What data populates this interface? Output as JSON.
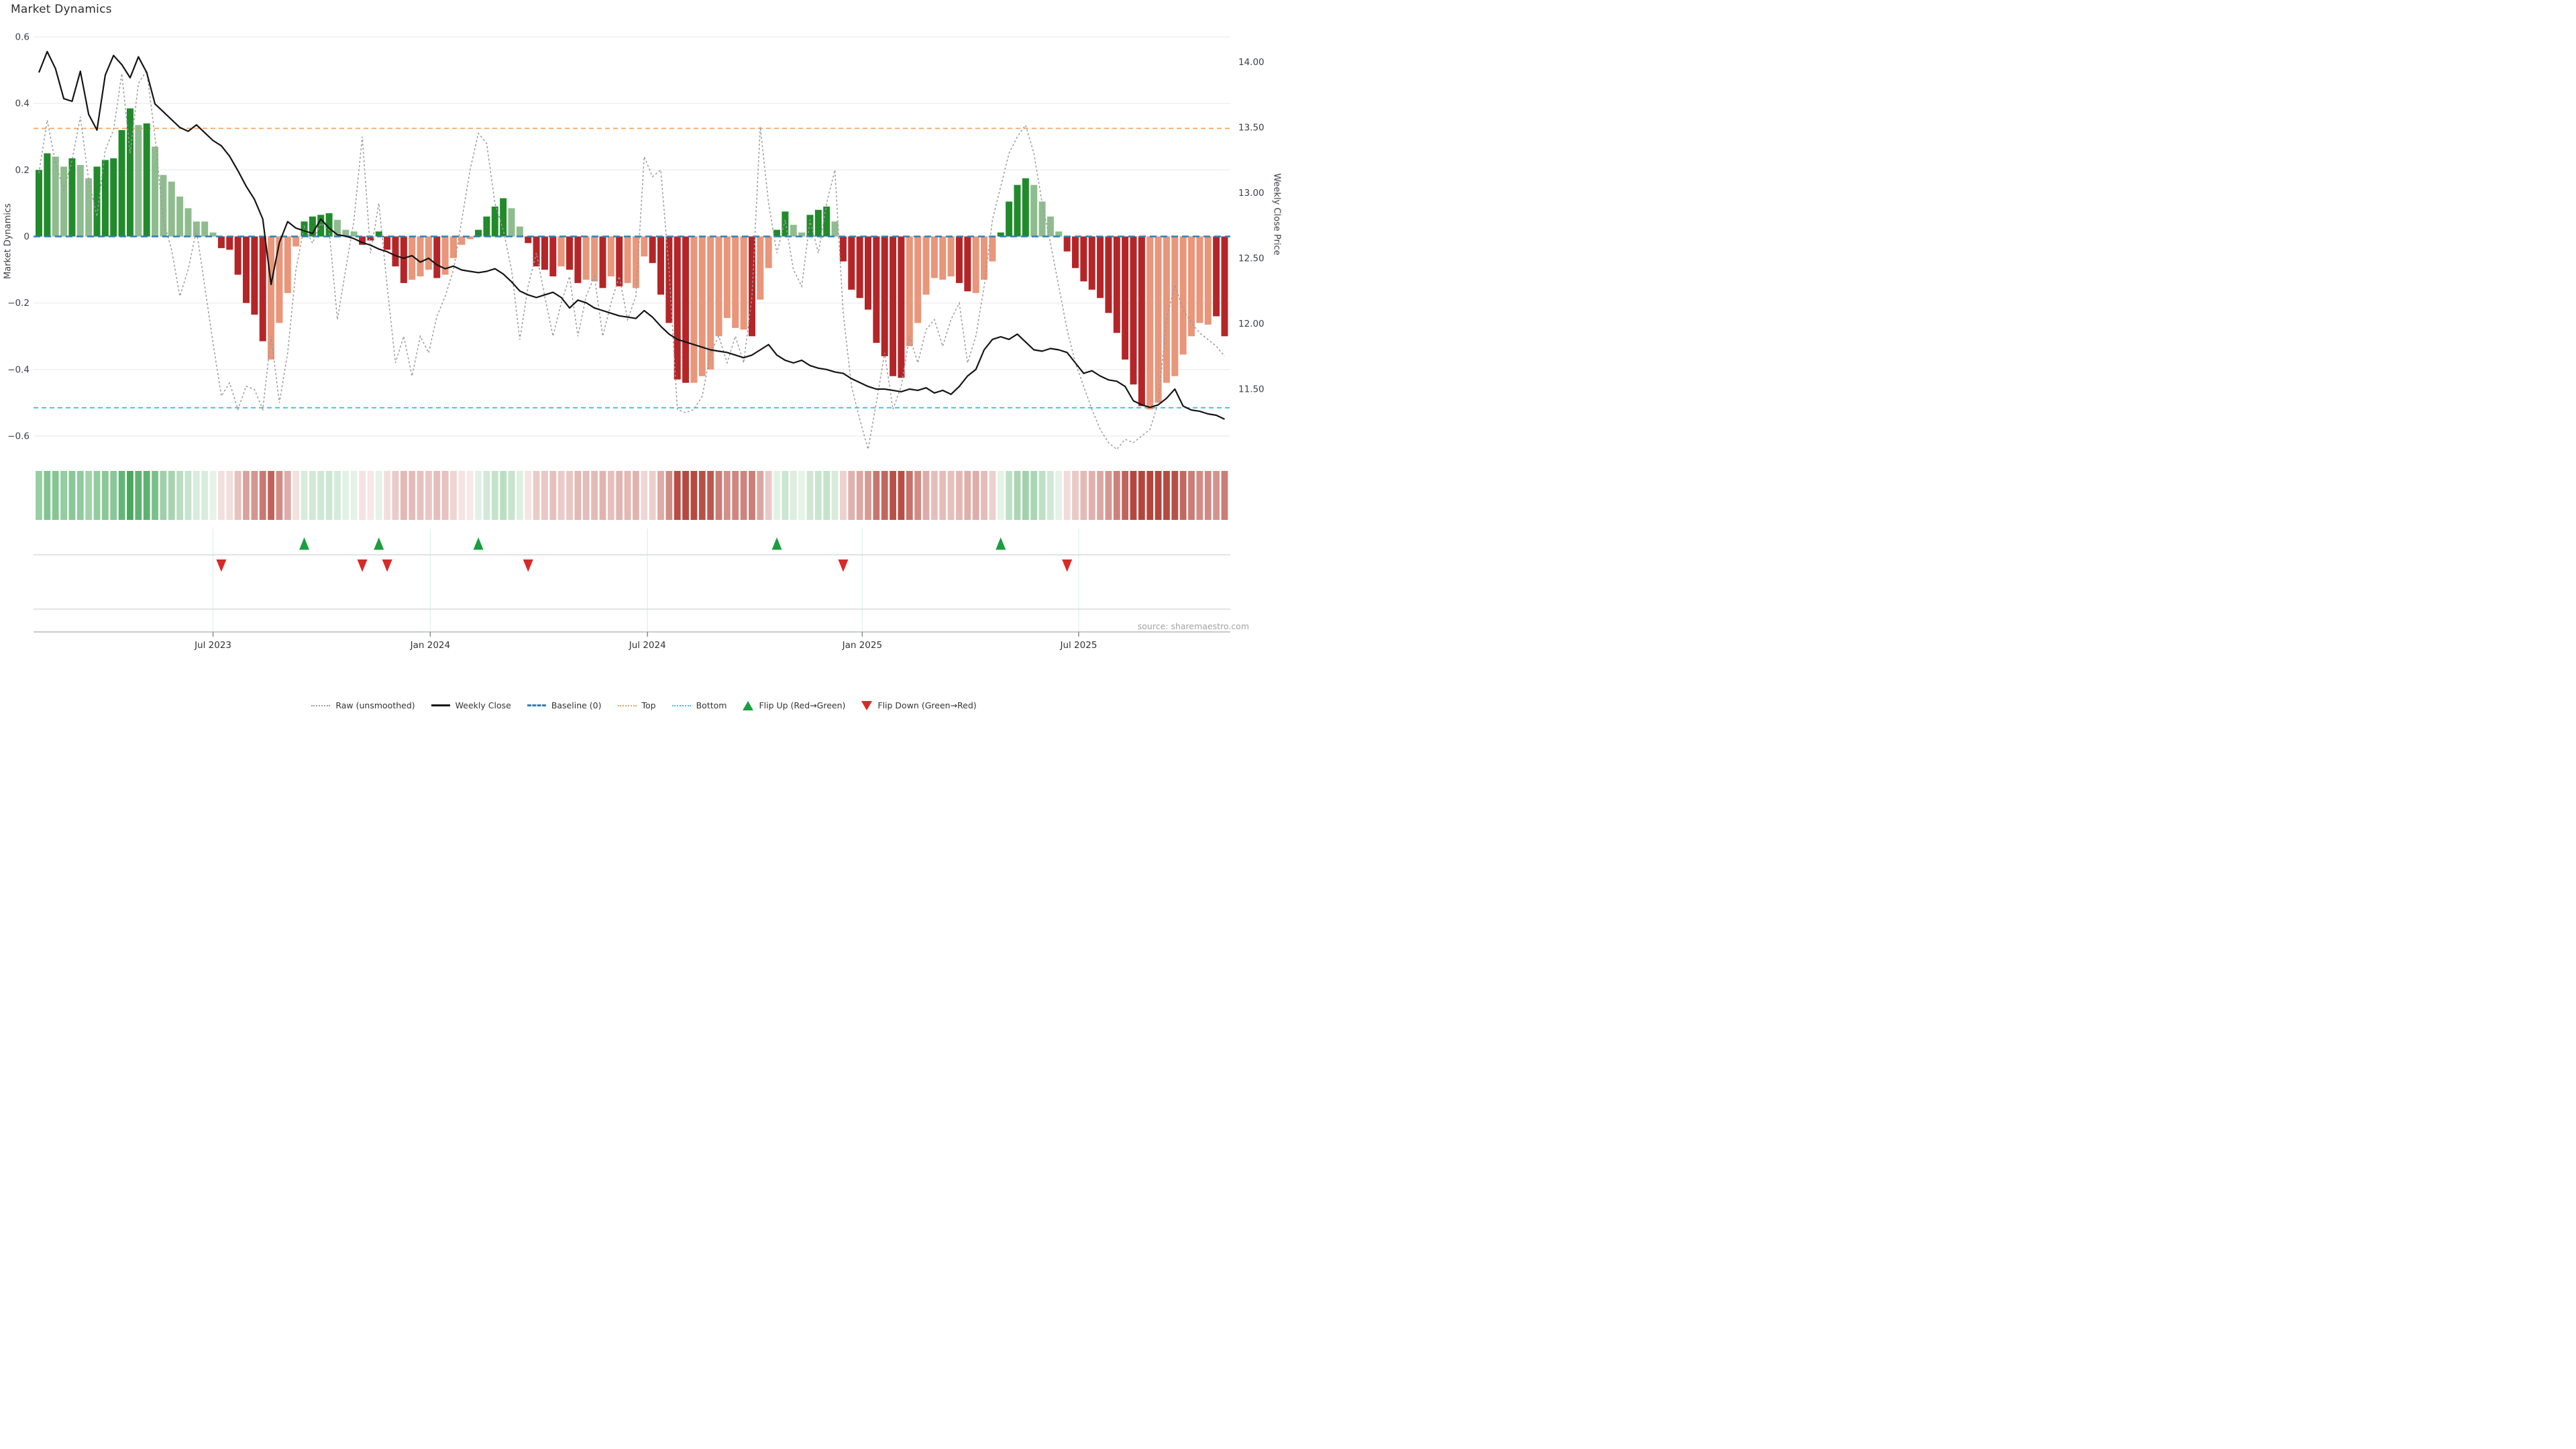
{
  "title": "Market Dynamics",
  "left_axis": {
    "title": "Market Dynamics",
    "tick_labels": [
      "0.6",
      "0.4",
      "0.2",
      "0",
      "−0.2",
      "−0.4",
      "−0.6"
    ],
    "tick_values": [
      0.6,
      0.4,
      0.2,
      0,
      -0.2,
      -0.4,
      -0.6
    ]
  },
  "right_axis": {
    "title": "Weekly Close Price",
    "tick_labels": [
      "14.00",
      "13.50",
      "13.00",
      "12.50",
      "12.00",
      "11.50"
    ],
    "tick_values": [
      14.0,
      13.5,
      13.0,
      12.5,
      12.0,
      11.5
    ]
  },
  "x_axis": {
    "ticks": [
      {
        "label": "Jul 2023",
        "week": 21.0
      },
      {
        "label": "Jan 2024",
        "week": 47.2
      },
      {
        "label": "Jul 2024",
        "week": 73.4
      },
      {
        "label": "Jan 2025",
        "week": 99.3
      },
      {
        "label": "Jul 2025",
        "week": 125.4
      }
    ]
  },
  "source": "source: sharemaestro.com",
  "legend": [
    {
      "label": "Raw (unsmoothed)",
      "swatch": "dotted-gray"
    },
    {
      "label": "Weekly Close",
      "swatch": "solid-black"
    },
    {
      "label": "Baseline (0)",
      "swatch": "dashed-blue"
    },
    {
      "label": "Top",
      "swatch": "dotted-orange"
    },
    {
      "label": "Bottom",
      "swatch": "dotted-cyan"
    },
    {
      "label": "Flip Up (Red→Green)",
      "swatch": "tri-up"
    },
    {
      "label": "Flip Down (Green→Red)",
      "swatch": "tri-down"
    }
  ],
  "colors": {
    "bar_dark_green": "#218b2b",
    "bar_light_green": "#8fbc8f",
    "bar_dark_red": "#b52527",
    "bar_salmon": "#e9967a",
    "baseline": "#2e7ebb",
    "top_line": "#f4a460",
    "bottom_line": "#2ec4e8",
    "raw_line": "#9b9b9b",
    "close_line": "#141414",
    "flip_up": "#1b9e3f",
    "flip_down": "#d62a28",
    "heat_green": "#2e9c46",
    "heat_red": "#b5453c",
    "grid": "#eceef2",
    "panel_line": "#d8dadc",
    "axis_line": "#c9cbcd"
  },
  "chart_data": {
    "type": "bar",
    "description": "Weekly market-dynamics oscillator bars (left axis) with raw unsmoothed line, weekly close price (right axis), baseline 0, top 0.325, bottom -0.515, and flip signal markers",
    "n_weeks": 144,
    "baseline": 0,
    "top": 0.325,
    "bottom": -0.515,
    "ylim_left": [
      -0.65,
      0.63
    ],
    "ylim_right": [
      11.0,
      14.2
    ],
    "flip_up_weeks": [
      32,
      41,
      53,
      89,
      116
    ],
    "flip_down_weeks": [
      22,
      39,
      42,
      59,
      97,
      124
    ],
    "bar_shades": "GGggGggGGGGGgGggggggggRRRRRRrrrrGGGGgggRRGRRRrrrRrrrrGGGGggRRRRrRRrrRrRrrrRRRRRrrrrrrrRrrGGggGGGgRRRRRRRRrrrrrrRRrrrGGGGggggRRRRRRRRRRrrrrrrrrRR",
    "series": [
      {
        "name": "Market Dynamics (smoothed)",
        "axis": "left",
        "values": [
          0.2,
          0.25,
          0.24,
          0.21,
          0.235,
          0.215,
          0.175,
          0.21,
          0.23,
          0.235,
          0.32,
          0.385,
          0.335,
          0.34,
          0.27,
          0.185,
          0.165,
          0.12,
          0.085,
          0.045,
          0.045,
          0.012,
          -0.035,
          -0.04,
          -0.115,
          -0.2,
          -0.235,
          -0.315,
          -0.37,
          -0.26,
          -0.17,
          -0.03,
          0.045,
          0.06,
          0.065,
          0.07,
          0.05,
          0.02,
          0.015,
          -0.025,
          -0.012,
          0.015,
          -0.04,
          -0.09,
          -0.14,
          -0.13,
          -0.12,
          -0.1,
          -0.125,
          -0.115,
          -0.065,
          -0.025,
          -0.008,
          0.02,
          0.06,
          0.09,
          0.115,
          0.085,
          0.03,
          -0.02,
          -0.09,
          -0.1,
          -0.12,
          -0.09,
          -0.1,
          -0.14,
          -0.13,
          -0.135,
          -0.155,
          -0.12,
          -0.15,
          -0.14,
          -0.155,
          -0.06,
          -0.08,
          -0.175,
          -0.26,
          -0.43,
          -0.44,
          -0.44,
          -0.42,
          -0.4,
          -0.3,
          -0.245,
          -0.275,
          -0.28,
          -0.3,
          -0.19,
          -0.095,
          0.02,
          0.075,
          0.035,
          0.012,
          0.065,
          0.08,
          0.09,
          0.045,
          -0.075,
          -0.16,
          -0.185,
          -0.22,
          -0.32,
          -0.36,
          -0.42,
          -0.425,
          -0.33,
          -0.26,
          -0.175,
          -0.125,
          -0.13,
          -0.12,
          -0.14,
          -0.165,
          -0.17,
          -0.13,
          -0.075,
          0.012,
          0.105,
          0.155,
          0.175,
          0.155,
          0.105,
          0.06,
          0.015,
          -0.045,
          -0.095,
          -0.135,
          -0.16,
          -0.185,
          -0.23,
          -0.29,
          -0.37,
          -0.445,
          -0.51,
          -0.52,
          -0.5,
          -0.44,
          -0.42,
          -0.355,
          -0.3,
          -0.26,
          -0.265,
          -0.24,
          -0.3
        ]
      },
      {
        "name": "Raw (unsmoothed)",
        "axis": "left",
        "values": [
          0.19,
          0.35,
          0.22,
          0.14,
          0.23,
          0.36,
          0.17,
          0.06,
          0.26,
          0.32,
          0.49,
          0.25,
          0.46,
          0.5,
          0.3,
          0.05,
          -0.04,
          -0.18,
          -0.1,
          0.02,
          -0.15,
          -0.32,
          -0.48,
          -0.44,
          -0.52,
          -0.45,
          -0.46,
          -0.52,
          -0.3,
          -0.5,
          -0.35,
          -0.1,
          0.03,
          -0.02,
          0.04,
          0.02,
          -0.25,
          -0.1,
          0.05,
          0.3,
          -0.05,
          0.1,
          -0.15,
          -0.38,
          -0.3,
          -0.42,
          -0.3,
          -0.35,
          -0.24,
          -0.18,
          -0.1,
          0.05,
          0.2,
          0.31,
          0.28,
          0.1,
          0.02,
          -0.1,
          -0.31,
          -0.15,
          -0.05,
          -0.18,
          -0.3,
          -0.2,
          -0.12,
          -0.3,
          -0.18,
          -0.12,
          -0.3,
          -0.2,
          -0.12,
          -0.25,
          -0.18,
          0.24,
          0.18,
          0.2,
          -0.1,
          -0.52,
          -0.53,
          -0.52,
          -0.48,
          -0.35,
          -0.3,
          -0.38,
          -0.3,
          -0.38,
          -0.18,
          0.33,
          0.1,
          -0.05,
          0.05,
          -0.1,
          -0.15,
          0.05,
          -0.05,
          0.1,
          0.2,
          -0.23,
          -0.45,
          -0.55,
          -0.64,
          -0.5,
          -0.35,
          -0.52,
          -0.45,
          -0.3,
          -0.38,
          -0.28,
          -0.25,
          -0.33,
          -0.25,
          -0.2,
          -0.38,
          -0.3,
          -0.15,
          0.05,
          0.15,
          0.25,
          0.3,
          0.335,
          0.25,
          0.1,
          -0.02,
          -0.15,
          -0.28,
          -0.38,
          -0.45,
          -0.52,
          -0.58,
          -0.62,
          -0.64,
          -0.61,
          -0.62,
          -0.6,
          -0.58,
          -0.5,
          -0.25,
          -0.145,
          -0.22,
          -0.26,
          -0.29,
          -0.31,
          -0.33,
          -0.36
        ]
      },
      {
        "name": "Weekly Close",
        "axis": "right",
        "values": [
          13.92,
          14.08,
          13.95,
          13.72,
          13.7,
          13.93,
          13.6,
          13.48,
          13.9,
          14.05,
          13.98,
          13.88,
          14.04,
          13.92,
          13.68,
          13.62,
          13.56,
          13.5,
          13.47,
          13.52,
          13.46,
          13.4,
          13.36,
          13.28,
          13.17,
          13.05,
          12.95,
          12.8,
          12.3,
          12.62,
          12.78,
          12.73,
          12.71,
          12.69,
          12.8,
          12.73,
          12.68,
          12.67,
          12.65,
          12.62,
          12.6,
          12.57,
          12.55,
          12.52,
          12.5,
          12.52,
          12.47,
          12.5,
          12.45,
          12.42,
          12.44,
          12.41,
          12.4,
          12.39,
          12.4,
          12.42,
          12.38,
          12.32,
          12.25,
          12.22,
          12.2,
          12.22,
          12.24,
          12.2,
          12.12,
          12.18,
          12.16,
          12.12,
          12.1,
          12.08,
          12.06,
          12.05,
          12.04,
          12.1,
          12.05,
          11.98,
          11.92,
          11.88,
          11.86,
          11.84,
          11.82,
          11.8,
          11.79,
          11.78,
          11.76,
          11.74,
          11.76,
          11.8,
          11.84,
          11.76,
          11.72,
          11.7,
          11.72,
          11.68,
          11.66,
          11.65,
          11.63,
          11.62,
          11.58,
          11.55,
          11.52,
          11.5,
          11.5,
          11.49,
          11.48,
          11.5,
          11.49,
          11.51,
          11.47,
          11.49,
          11.46,
          11.52,
          11.6,
          11.65,
          11.8,
          11.88,
          11.9,
          11.88,
          11.92,
          11.86,
          11.8,
          11.79,
          11.81,
          11.8,
          11.78,
          11.7,
          11.62,
          11.64,
          11.6,
          11.57,
          11.56,
          11.52,
          11.41,
          11.38,
          11.36,
          11.38,
          11.43,
          11.5,
          11.37,
          11.34,
          11.33,
          11.31,
          11.3,
          11.27
        ]
      }
    ]
  }
}
